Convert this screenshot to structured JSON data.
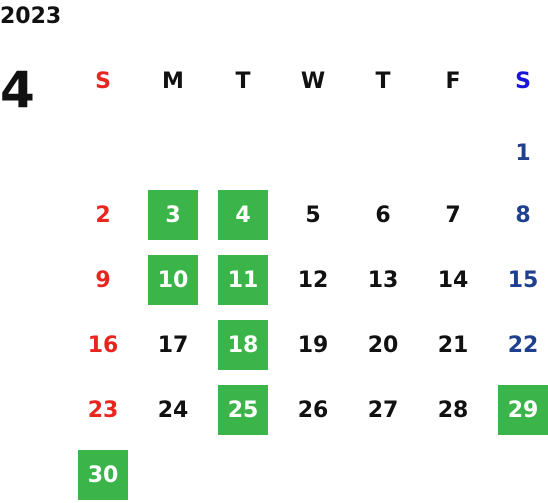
{
  "calendar": {
    "year": "2023",
    "month": "4",
    "weekdays": [
      "S",
      "M",
      "T",
      "W",
      "T",
      "F",
      "S"
    ],
    "weeks": [
      [
        "",
        "",
        "",
        "",
        "",
        "",
        "1"
      ],
      [
        "2",
        "3",
        "4",
        "5",
        "6",
        "7",
        "8"
      ],
      [
        "9",
        "10",
        "11",
        "12",
        "13",
        "14",
        "15"
      ],
      [
        "16",
        "17",
        "18",
        "19",
        "20",
        "21",
        "22"
      ],
      [
        "23",
        "24",
        "25",
        "26",
        "27",
        "28",
        "29"
      ],
      [
        "30",
        "",
        "",
        "",
        "",
        "",
        ""
      ]
    ],
    "highlighted_days": [
      "3",
      "4",
      "10",
      "11",
      "18",
      "25",
      "29",
      "30"
    ]
  },
  "colors": {
    "sunday": "#e8251f",
    "saturday_header": "#1a16d9",
    "saturday": "#1f3f8f",
    "weekday": "#111111",
    "highlight_bg": "#3bb54a",
    "highlight_text": "#ffffff"
  }
}
